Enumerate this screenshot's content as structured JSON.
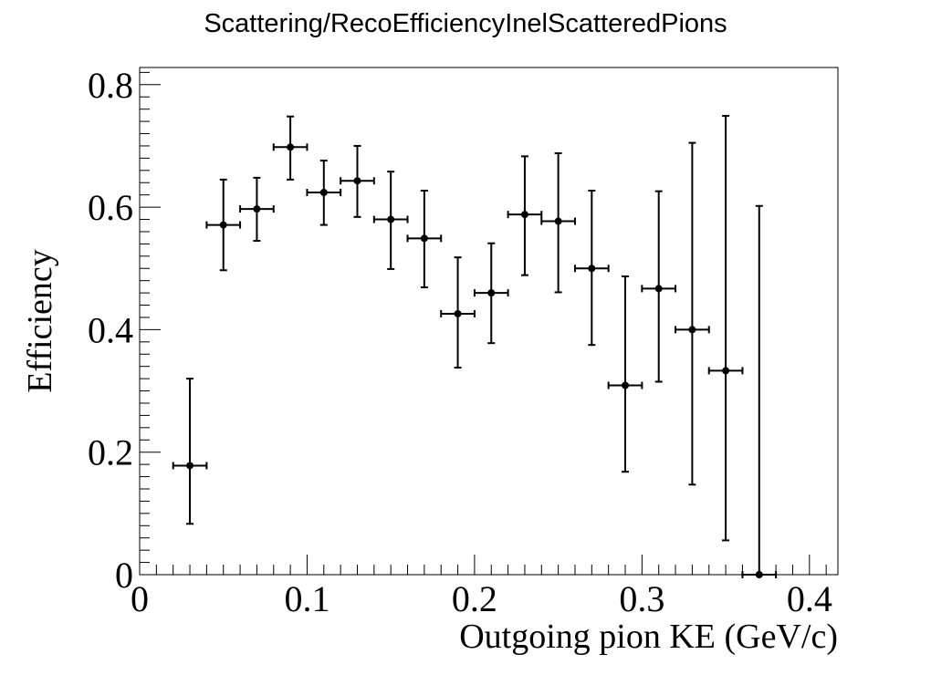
{
  "chart_data": {
    "type": "scatter",
    "title": "Scattering/RecoEfficiencyInelScatteredPions",
    "xlabel": "Outgoing pion KE (GeV/c)",
    "ylabel": "Efficiency",
    "xlim": [
      0,
      0.417
    ],
    "ylim": [
      0,
      0.828
    ],
    "x_ticks": [
      "0",
      "0.1",
      "0.2",
      "0.3",
      "0.4"
    ],
    "x_tick_values": [
      0,
      0.1,
      0.2,
      0.3,
      0.4
    ],
    "y_ticks": [
      "0",
      "0.2",
      "0.4",
      "0.6",
      "0.8"
    ],
    "y_tick_values": [
      0,
      0.2,
      0.4,
      0.6,
      0.8
    ],
    "grid": false,
    "legend": false,
    "marker_color": "#000000",
    "points": [
      {
        "x": 0.03,
        "y": 0.178,
        "xerr": 0.01,
        "ylow": 0.083,
        "yhigh": 0.32
      },
      {
        "x": 0.05,
        "y": 0.571,
        "xerr": 0.01,
        "ylow": 0.497,
        "yhigh": 0.645
      },
      {
        "x": 0.07,
        "y": 0.597,
        "xerr": 0.01,
        "ylow": 0.545,
        "yhigh": 0.648
      },
      {
        "x": 0.09,
        "y": 0.698,
        "xerr": 0.01,
        "ylow": 0.645,
        "yhigh": 0.748
      },
      {
        "x": 0.11,
        "y": 0.624,
        "xerr": 0.01,
        "ylow": 0.571,
        "yhigh": 0.676
      },
      {
        "x": 0.13,
        "y": 0.643,
        "xerr": 0.01,
        "ylow": 0.584,
        "yhigh": 0.7
      },
      {
        "x": 0.15,
        "y": 0.58,
        "xerr": 0.01,
        "ylow": 0.499,
        "yhigh": 0.658
      },
      {
        "x": 0.17,
        "y": 0.549,
        "xerr": 0.01,
        "ylow": 0.469,
        "yhigh": 0.627
      },
      {
        "x": 0.19,
        "y": 0.426,
        "xerr": 0.01,
        "ylow": 0.338,
        "yhigh": 0.518
      },
      {
        "x": 0.21,
        "y": 0.46,
        "xerr": 0.01,
        "ylow": 0.378,
        "yhigh": 0.541
      },
      {
        "x": 0.23,
        "y": 0.588,
        "xerr": 0.01,
        "ylow": 0.489,
        "yhigh": 0.683
      },
      {
        "x": 0.25,
        "y": 0.577,
        "xerr": 0.01,
        "ylow": 0.461,
        "yhigh": 0.688
      },
      {
        "x": 0.27,
        "y": 0.5,
        "xerr": 0.01,
        "ylow": 0.375,
        "yhigh": 0.627
      },
      {
        "x": 0.29,
        "y": 0.309,
        "xerr": 0.01,
        "ylow": 0.168,
        "yhigh": 0.487
      },
      {
        "x": 0.31,
        "y": 0.467,
        "xerr": 0.01,
        "ylow": 0.315,
        "yhigh": 0.626
      },
      {
        "x": 0.33,
        "y": 0.4,
        "xerr": 0.01,
        "ylow": 0.147,
        "yhigh": 0.705
      },
      {
        "x": 0.35,
        "y": 0.333,
        "xerr": 0.01,
        "ylow": 0.056,
        "yhigh": 0.749
      },
      {
        "x": 0.37,
        "y": 0.0,
        "xerr": 0.01,
        "ylow": 0.0,
        "yhigh": 0.602
      }
    ]
  }
}
